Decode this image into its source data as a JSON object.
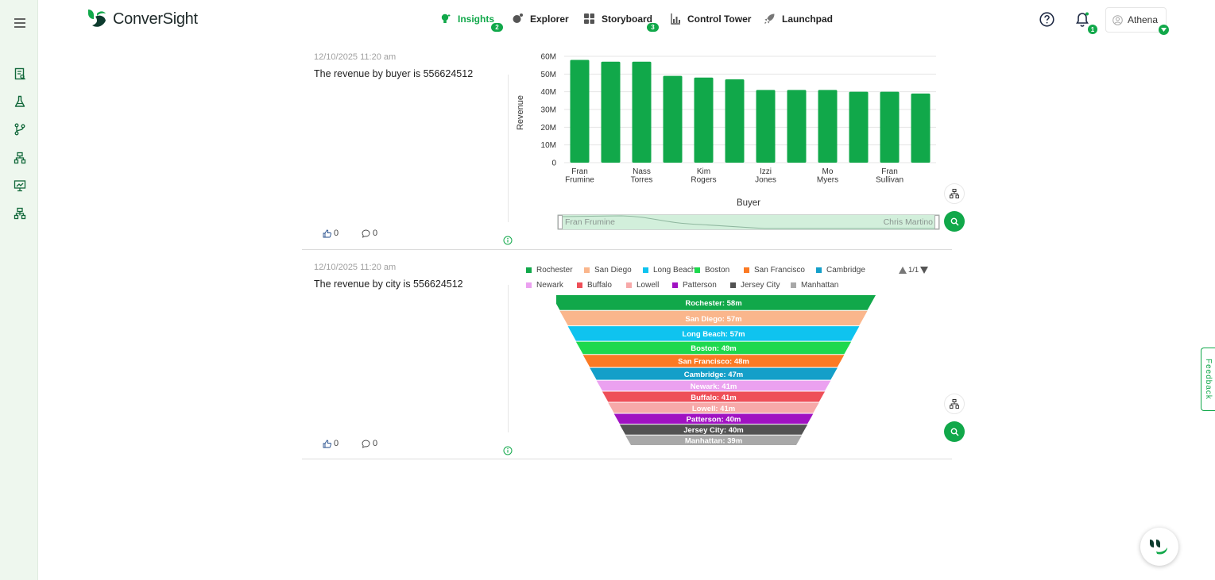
{
  "app": {
    "name": "ConverSight"
  },
  "nav": [
    {
      "label": "Insights",
      "active": true,
      "badge": "2"
    },
    {
      "label": "Explorer",
      "active": false,
      "badge": ""
    },
    {
      "label": "Storyboard",
      "active": false,
      "badge": "3"
    },
    {
      "label": "Control Tower",
      "active": false,
      "badge": ""
    },
    {
      "label": "Launchpad",
      "active": false,
      "badge": ""
    }
  ],
  "header": {
    "notification_count": "1",
    "user_name": "Athena"
  },
  "sidebar_icons": [
    "menu-icon",
    "report-icon",
    "flask-icon",
    "branch-icon",
    "hierarchy-icon",
    "presentation-icon",
    "org-chart-icon"
  ],
  "insights": [
    {
      "timestamp": "12/10/2025 11:20 am",
      "summary": "The revenue by buyer is 556624512",
      "likes": "0",
      "comments": "0",
      "slider": {
        "start_label": "Fran Frumine",
        "end_label": "Chris Martino"
      }
    },
    {
      "timestamp": "12/10/2025 11:20 am",
      "summary": "The revenue by city is 556624512",
      "likes": "0",
      "comments": "0",
      "legend_page": "1/1"
    }
  ],
  "chart_data": [
    {
      "type": "bar",
      "xlabel": "Buyer",
      "ylabel": "Revenue",
      "ylim": [
        0,
        60000000
      ],
      "yticks": [
        "0",
        "10M",
        "20M",
        "30M",
        "40M",
        "50M",
        "60M"
      ],
      "tick_labels": [
        [
          "Fran",
          "Frumine"
        ],
        [
          "Nass",
          "Torres"
        ],
        [
          "Kim",
          "Rogers"
        ],
        [
          "Izzi",
          "Jones"
        ],
        [
          "Mo",
          "Myers"
        ],
        [
          "Fran",
          "Sullivan"
        ]
      ],
      "tick_every": 2,
      "values": [
        58000000,
        57000000,
        57000000,
        49000000,
        48000000,
        47000000,
        41000000,
        41000000,
        41000000,
        40000000,
        40000000,
        39000000
      ],
      "color": "#11a84a",
      "grid": true
    },
    {
      "type": "funnel",
      "legend_position": "top",
      "series": [
        {
          "name": "Rochester",
          "label": "Rochester: 58m",
          "value": 58,
          "color": "#11a84a"
        },
        {
          "name": "San Diego",
          "label": "San Diego: 57m",
          "value": 57,
          "color": "#fab68c"
        },
        {
          "name": "Long Beach",
          "label": "Long Beach: 57m",
          "value": 57,
          "color": "#0fc3ef"
        },
        {
          "name": "Boston",
          "label": "Boston: 49m",
          "value": 49,
          "color": "#1ed84e"
        },
        {
          "name": "San Francisco",
          "label": "San Francisco: 48m",
          "value": 48,
          "color": "#fb7a24"
        },
        {
          "name": "Cambridge",
          "label": "Cambridge: 47m",
          "value": 47,
          "color": "#149fc9"
        },
        {
          "name": "Newark",
          "label": "Newark: 41m",
          "value": 41,
          "color": "#eba1f0"
        },
        {
          "name": "Buffalo",
          "label": "Buffalo: 41m",
          "value": 41,
          "color": "#ee4f58"
        },
        {
          "name": "Lowell",
          "label": "Lowell: 41m",
          "value": 41,
          "color": "#f7a9a9"
        },
        {
          "name": "Patterson",
          "label": "Patterson: 40m",
          "value": 40,
          "color": "#a012c2"
        },
        {
          "name": "Jersey City",
          "label": "Jersey City: 40m",
          "value": 40,
          "color": "#525252"
        },
        {
          "name": "Manhattan",
          "label": "Manhattan: 39m",
          "value": 39,
          "color": "#a8a8a8"
        }
      ]
    }
  ],
  "feedback_label": "Feedback"
}
